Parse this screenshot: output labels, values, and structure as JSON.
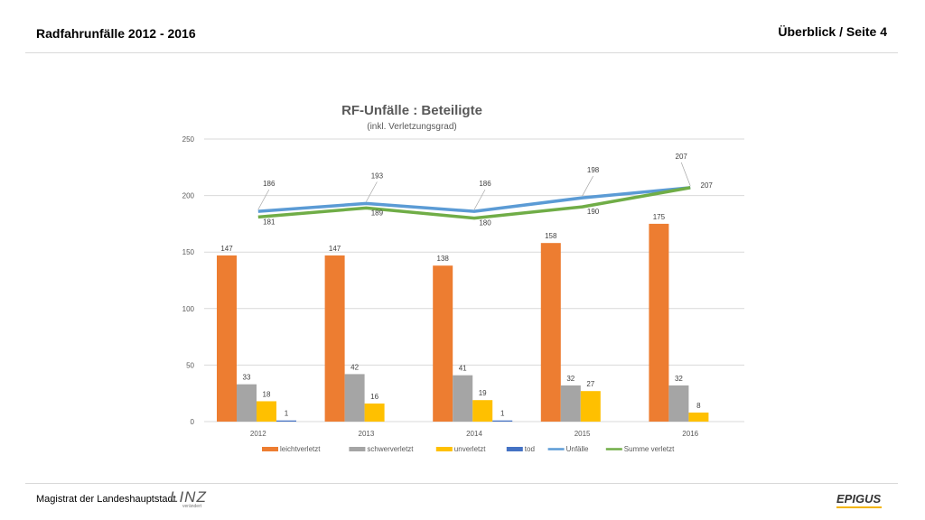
{
  "header": {
    "title": "Radfahrunfälle 2012 - 2016",
    "page": "Überblick / Seite 4"
  },
  "footer": {
    "org": "Magistrat der Landeshauptstadt",
    "linz_logo": "LINZ",
    "linz_sub": "verändert",
    "brand_logo": "EPIGUS"
  },
  "chart_data": {
    "type": "bar",
    "title": "RF-Unfälle : Beteiligte",
    "subtitle": "(inkl. Verletzungsgrad)",
    "categories": [
      "2012",
      "2013",
      "2014",
      "2015",
      "2016"
    ],
    "ylim": [
      0,
      250
    ],
    "yticks": [
      "0",
      "50",
      "100",
      "150",
      "200",
      "250"
    ],
    "grid": true,
    "legend_position": "bottom",
    "series": [
      {
        "name": "leichtverletzt",
        "kind": "bar",
        "color": "#ed7d31",
        "values": [
          147,
          147,
          138,
          158,
          175
        ]
      },
      {
        "name": "schwerverletzt",
        "kind": "bar",
        "color": "#a5a5a5",
        "values": [
          33,
          42,
          41,
          32,
          32
        ]
      },
      {
        "name": "unverletzt",
        "kind": "bar",
        "color": "#ffc000",
        "values": [
          18,
          16,
          19,
          27,
          8
        ]
      },
      {
        "name": "tod",
        "kind": "bar",
        "color": "#4472c4",
        "values": [
          1,
          null,
          1,
          null,
          null
        ]
      },
      {
        "name": "Unfälle",
        "kind": "line",
        "color": "#5b9bd5",
        "values": [
          186,
          193,
          186,
          198,
          207
        ]
      },
      {
        "name": "Summe verletzt",
        "kind": "line",
        "color": "#70ad47",
        "values": [
          181,
          189,
          180,
          190,
          207
        ]
      }
    ]
  }
}
